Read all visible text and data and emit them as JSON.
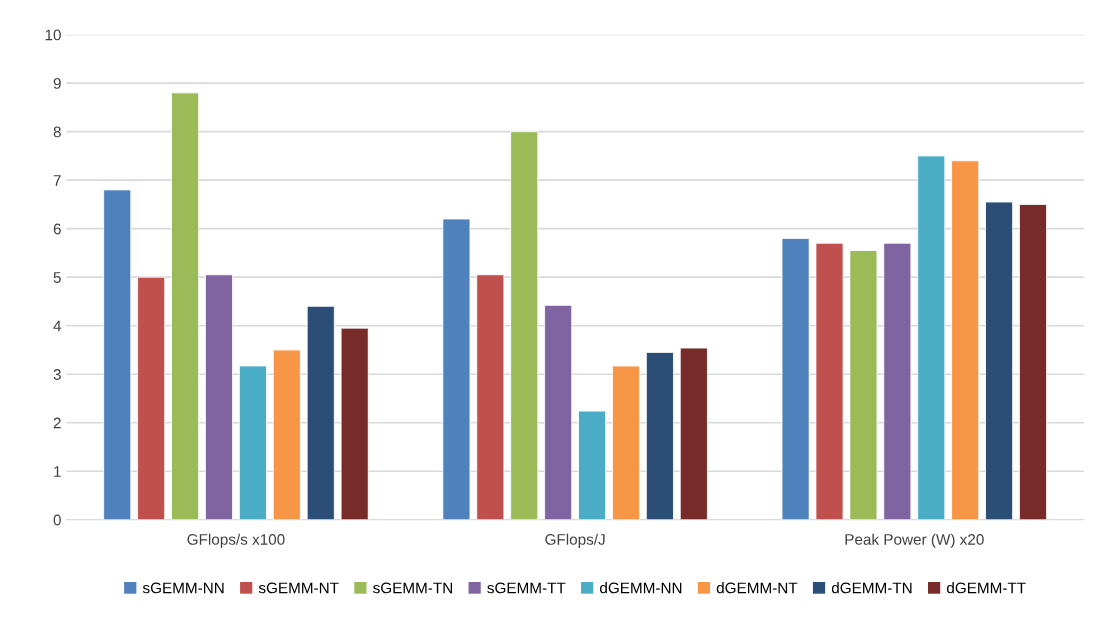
{
  "chart_data": {
    "type": "bar",
    "categories": [
      "GFlops/s x100",
      "GFlops/J",
      "Peak Power (W) x20"
    ],
    "series": [
      {
        "name": "sGEMM-NN",
        "color": "#4f81bd",
        "values": [
          6.8,
          6.2,
          5.8
        ]
      },
      {
        "name": "sGEMM-NT",
        "color": "#c0504d",
        "values": [
          5.0,
          5.05,
          5.7
        ]
      },
      {
        "name": "sGEMM-TN",
        "color": "#9bbb59",
        "values": [
          8.8,
          8.0,
          5.55
        ]
      },
      {
        "name": "sGEMM-TT",
        "color": "#8064a2",
        "values": [
          5.05,
          4.42,
          5.7
        ]
      },
      {
        "name": "dGEMM-NN",
        "color": "#4bacc6",
        "values": [
          3.17,
          2.24,
          7.5
        ]
      },
      {
        "name": "dGEMM-NT",
        "color": "#f79646",
        "values": [
          3.5,
          3.17,
          7.4
        ]
      },
      {
        "name": "dGEMM-TN",
        "color": "#2c4d75",
        "values": [
          4.4,
          3.45,
          6.55
        ]
      },
      {
        "name": "dGEMM-TT",
        "color": "#772c2a",
        "values": [
          3.95,
          3.54,
          6.5
        ]
      }
    ],
    "ylim": [
      0,
      10
    ],
    "yticks": [
      0,
      1,
      2,
      3,
      4,
      5,
      6,
      7,
      8,
      9,
      10
    ],
    "grid": "y",
    "legend": "bottom"
  }
}
